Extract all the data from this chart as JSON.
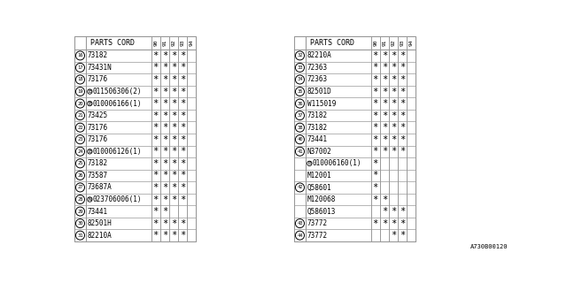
{
  "bg_color": "#ffffff",
  "table_bg": "#ffffff",
  "border_color": "#999999",
  "text_color": "#000000",
  "font_size": 5.5,
  "col_headers": [
    "90",
    "91",
    "92",
    "93",
    "94"
  ],
  "watermark": "A730B00120",
  "left_table": {
    "title": "PARTS CORD",
    "rows": [
      {
        "num": "16",
        "part": "73182",
        "marks": [
          1,
          1,
          1,
          1,
          0
        ]
      },
      {
        "num": "17",
        "part": "73431N",
        "marks": [
          1,
          1,
          1,
          1,
          0
        ]
      },
      {
        "num": "18",
        "part": "73176",
        "marks": [
          1,
          1,
          1,
          1,
          0
        ]
      },
      {
        "num": "19",
        "part": "B011506306(2)",
        "marks": [
          1,
          1,
          1,
          1,
          0
        ],
        "prefix": "B"
      },
      {
        "num": "20",
        "part": "B010006166(1)",
        "marks": [
          1,
          1,
          1,
          1,
          0
        ],
        "prefix": "B"
      },
      {
        "num": "21",
        "part": "73425",
        "marks": [
          1,
          1,
          1,
          1,
          0
        ]
      },
      {
        "num": "22",
        "part": "73176",
        "marks": [
          1,
          1,
          1,
          1,
          0
        ]
      },
      {
        "num": "23",
        "part": "73176",
        "marks": [
          1,
          1,
          1,
          1,
          0
        ]
      },
      {
        "num": "24",
        "part": "B010006126(1)",
        "marks": [
          1,
          1,
          1,
          1,
          0
        ],
        "prefix": "B"
      },
      {
        "num": "25",
        "part": "73182",
        "marks": [
          1,
          1,
          1,
          1,
          0
        ]
      },
      {
        "num": "26",
        "part": "73587",
        "marks": [
          1,
          1,
          1,
          1,
          0
        ]
      },
      {
        "num": "27",
        "part": "73687A",
        "marks": [
          1,
          1,
          1,
          1,
          0
        ]
      },
      {
        "num": "28",
        "part": "N023706006(1)",
        "marks": [
          1,
          1,
          1,
          1,
          0
        ],
        "prefix": "N"
      },
      {
        "num": "29",
        "part": "73441",
        "marks": [
          1,
          1,
          0,
          0,
          0
        ]
      },
      {
        "num": "30",
        "part": "82501H",
        "marks": [
          1,
          1,
          1,
          1,
          0
        ]
      },
      {
        "num": "31",
        "part": "82210A",
        "marks": [
          1,
          1,
          1,
          1,
          0
        ]
      }
    ]
  },
  "right_table": {
    "title": "PARTS CORD",
    "rows": [
      {
        "num": "32",
        "part": "82210A",
        "marks": [
          1,
          1,
          1,
          1,
          0
        ]
      },
      {
        "num": "33",
        "part": "72363",
        "marks": [
          1,
          1,
          1,
          1,
          0
        ]
      },
      {
        "num": "34",
        "part": "72363",
        "marks": [
          1,
          1,
          1,
          1,
          0
        ]
      },
      {
        "num": "35",
        "part": "82501D",
        "marks": [
          1,
          1,
          1,
          1,
          0
        ]
      },
      {
        "num": "36",
        "part": "W115019",
        "marks": [
          1,
          1,
          1,
          1,
          0
        ]
      },
      {
        "num": "37",
        "part": "73182",
        "marks": [
          1,
          1,
          1,
          1,
          0
        ]
      },
      {
        "num": "38",
        "part": "73182",
        "marks": [
          1,
          1,
          1,
          1,
          0
        ]
      },
      {
        "num": "40",
        "part": "73441",
        "marks": [
          1,
          1,
          1,
          1,
          0
        ]
      },
      {
        "num": "41",
        "part": "N37002",
        "marks": [
          1,
          1,
          1,
          1,
          0
        ]
      },
      {
        "num": "",
        "part": "B010006160(1)",
        "marks": [
          1,
          0,
          0,
          0,
          0
        ],
        "prefix": "B"
      },
      {
        "num": "",
        "part": "M12001",
        "marks": [
          1,
          0,
          0,
          0,
          0
        ]
      },
      {
        "num": "42",
        "part": "Q58601",
        "marks": [
          1,
          0,
          0,
          0,
          0
        ]
      },
      {
        "num": "",
        "part": "M120068",
        "marks": [
          1,
          1,
          0,
          0,
          0
        ]
      },
      {
        "num": "",
        "part": "Q586013",
        "marks": [
          0,
          1,
          1,
          1,
          0
        ]
      },
      {
        "num": "43",
        "part": "73772",
        "marks": [
          1,
          1,
          1,
          1,
          0
        ]
      },
      {
        "num": "44",
        "part": "73772",
        "marks": [
          0,
          0,
          1,
          1,
          0
        ]
      }
    ]
  }
}
